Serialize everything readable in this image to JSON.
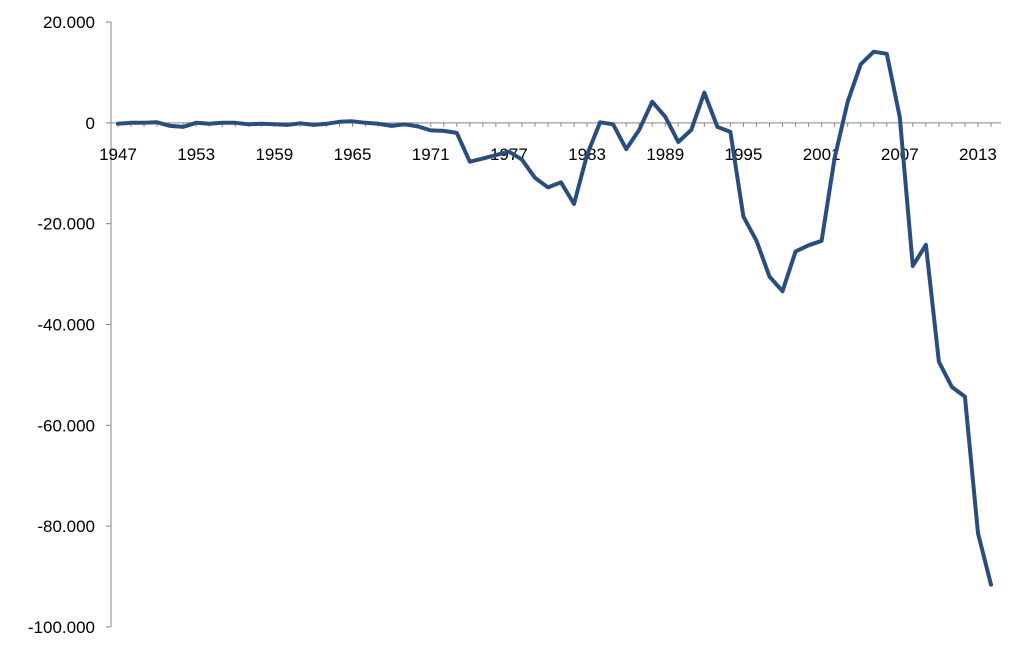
{
  "chart_data": {
    "type": "line",
    "title": "",
    "xlabel": "",
    "ylabel": "",
    "ylim": [
      -100000,
      20000
    ],
    "yticks": [
      20000,
      0,
      -20000,
      -40000,
      -60000,
      -80000,
      -100000
    ],
    "ytick_labels": [
      "20.000",
      "0",
      "-20.000",
      "-40.000",
      "-60.000",
      "-80.000",
      "-100.000"
    ],
    "xticks": [
      1947,
      1953,
      1959,
      1965,
      1971,
      1977,
      1983,
      1989,
      1995,
      2001,
      2007,
      2013
    ],
    "xtick_labels": [
      "1947",
      "1953",
      "1959",
      "1965",
      "1971",
      "1977",
      "1983",
      "1989",
      "1995",
      "2001",
      "2007",
      "2013"
    ],
    "grid": false,
    "legend": "none",
    "colors": {
      "line": "#2a4d7f",
      "axis": "#868686"
    },
    "series": [
      {
        "x": [
          1947,
          1948,
          1949,
          1950,
          1951,
          1952,
          1953,
          1954,
          1955,
          1956,
          1957,
          1958,
          1959,
          1960,
          1961,
          1962,
          1963,
          1964,
          1965,
          1966,
          1967,
          1968,
          1969,
          1970,
          1971,
          1972,
          1973,
          1974,
          1975,
          1976,
          1977,
          1978,
          1979,
          1980,
          1981,
          1982,
          1983,
          1984,
          1985,
          1986,
          1987,
          1988,
          1989,
          1990,
          1991,
          1992,
          1993,
          1994,
          1995,
          1996,
          1997,
          1998,
          1999,
          2000,
          2001,
          2002,
          2003,
          2004,
          2005,
          2006,
          2007,
          2008,
          2009,
          2010,
          2011,
          2012,
          2013,
          2014
        ],
        "values": [
          -200,
          0,
          0,
          100,
          -600,
          -800,
          0,
          -200,
          0,
          0,
          -300,
          -200,
          -300,
          -400,
          -100,
          -400,
          -200,
          200,
          300,
          0,
          -200,
          -600,
          -300,
          -700,
          -1500,
          -1600,
          -2000,
          -7700,
          -7100,
          -6400,
          -5700,
          -7300,
          -10900,
          -12800,
          -11800,
          -16100,
          -6300,
          100,
          -300,
          -5200,
          -1400,
          4200,
          1200,
          -3800,
          -1400,
          6000,
          -800,
          -1800,
          -18600,
          -23400,
          -30500,
          -33400,
          -25500,
          -24300,
          -23400,
          -7000,
          4200,
          11600,
          14100,
          13700,
          1100,
          -28400,
          -24200,
          -47400,
          -52400,
          -54300,
          -81400,
          -91600
        ]
      }
    ]
  }
}
